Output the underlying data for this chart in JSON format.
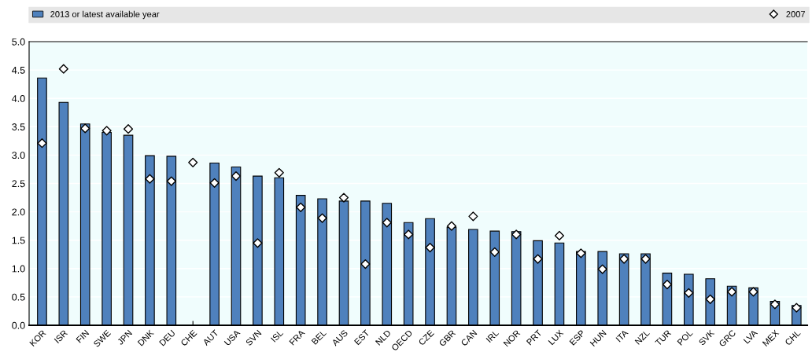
{
  "chart_data": {
    "type": "bar",
    "categories": [
      "KOR",
      "ISR",
      "FIN",
      "SWE",
      "JPN",
      "DNK",
      "DEU",
      "CHE",
      "AUT",
      "USA",
      "SVN",
      "ISL",
      "FRA",
      "BEL",
      "AUS",
      "EST",
      "NLD",
      "OECD",
      "CZE",
      "GBR",
      "CAN",
      "IRL",
      "NOR",
      "PRT",
      "LUX",
      "ESP",
      "HUN",
      "ITA",
      "NZL",
      "TUR",
      "POL",
      "SVK",
      "GRC",
      "LVA",
      "MEX",
      "CHL"
    ],
    "series": [
      {
        "name": "2013 or latest available year",
        "color": "#4f81bd",
        "values": [
          4.36,
          3.93,
          3.55,
          3.4,
          3.35,
          2.99,
          2.98,
          null,
          2.86,
          2.79,
          2.63,
          2.6,
          2.29,
          2.23,
          2.19,
          2.19,
          2.15,
          1.81,
          1.88,
          1.73,
          1.69,
          1.66,
          1.65,
          1.49,
          1.45,
          1.3,
          1.3,
          1.26,
          1.26,
          0.92,
          0.9,
          0.82,
          0.69,
          0.66,
          0.42,
          0.35
        ]
      },
      {
        "name": "2007",
        "type": "scatter",
        "color": "#ffffff",
        "marker": "diamond",
        "values": [
          3.21,
          4.52,
          3.47,
          3.43,
          3.46,
          2.58,
          2.54,
          2.87,
          2.51,
          2.63,
          1.45,
          2.69,
          2.08,
          1.89,
          2.25,
          1.08,
          1.81,
          1.6,
          1.37,
          1.75,
          1.92,
          1.29,
          1.6,
          1.17,
          1.58,
          1.27,
          0.99,
          1.17,
          1.17,
          0.72,
          0.57,
          0.46,
          0.59,
          0.59,
          0.37,
          0.31
        ]
      }
    ],
    "ylim": [
      0,
      5
    ],
    "yticks": [
      {
        "value": 0,
        "label": "0.0"
      },
      {
        "value": 0.5,
        "label": "0.5"
      },
      {
        "value": 1,
        "label": "1.0"
      },
      {
        "value": 1.5,
        "label": "1.5"
      },
      {
        "value": 2,
        "label": "2.0"
      },
      {
        "value": 2.5,
        "label": "2.5"
      },
      {
        "value": 3,
        "label": "3.0"
      },
      {
        "value": 3.5,
        "label": "3.5"
      },
      {
        "value": 4,
        "label": "4.0"
      },
      {
        "value": 4.5,
        "label": "4.5"
      },
      {
        "value": 5,
        "label": "5.0"
      }
    ],
    "grid": "y",
    "legend": "top"
  }
}
